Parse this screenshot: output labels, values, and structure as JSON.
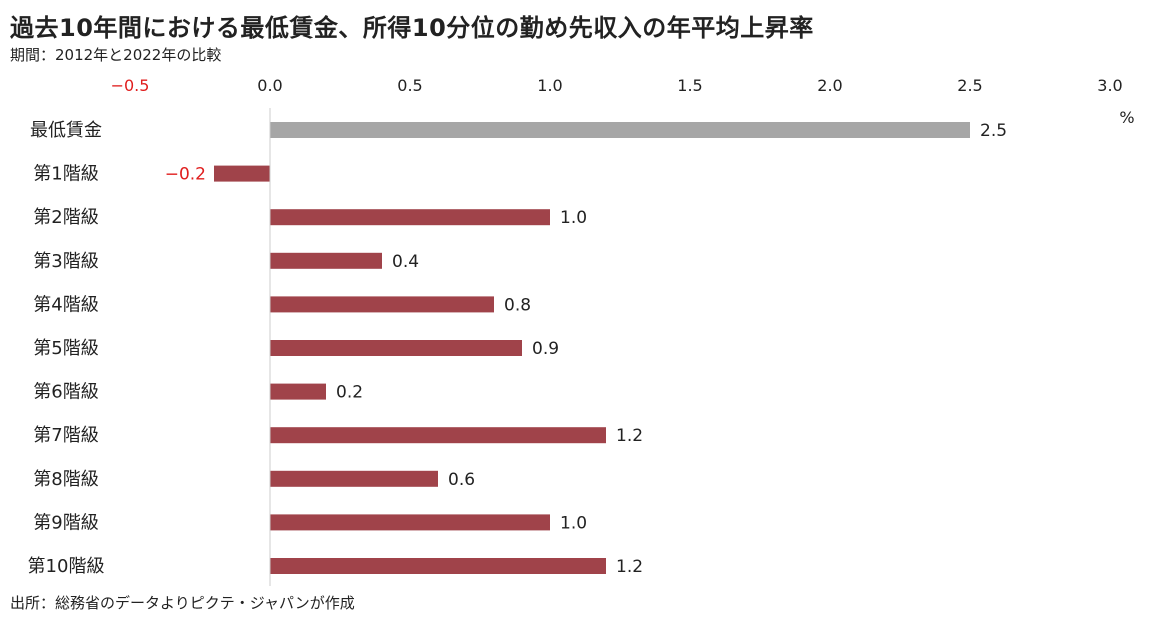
{
  "title": "過去10年間における最低賃金、所得10分位の勤め先収入の年平均上昇率",
  "subtitle": "期間：2012年と2022年の比較",
  "source": "出所：総務省のデータよりピクテ・ジャパンが作成",
  "chart_data": {
    "type": "bar",
    "orientation": "horizontal",
    "unit": "%",
    "categories": [
      "最低賃金",
      "第1階級",
      "第2階級",
      "第3階級",
      "第4階級",
      "第5階級",
      "第6階級",
      "第7階級",
      "第8階級",
      "第9階級",
      "第10階級"
    ],
    "values": [
      2.5,
      -0.2,
      1.0,
      0.4,
      0.8,
      0.9,
      0.2,
      1.2,
      0.6,
      1.0,
      1.2
    ],
    "value_labels": [
      "2.5",
      "−0.2",
      "1.0",
      "0.4",
      "0.8",
      "0.9",
      "0.2",
      "1.2",
      "0.6",
      "1.0",
      "1.2"
    ],
    "xlim": [
      -0.5,
      3.0
    ],
    "xticks": [
      -0.5,
      0.0,
      0.5,
      1.0,
      1.5,
      2.0,
      2.5,
      3.0
    ],
    "xtick_labels": [
      "−0.5",
      "0.0",
      "0.5",
      "1.0",
      "1.5",
      "2.0",
      "2.5",
      "3.0"
    ],
    "axis_position": "top",
    "grid": false,
    "colors": {
      "min_wage_bar": "#a6a6a6",
      "decile_bar": "#a0434a",
      "negative_text": "#e01e1e",
      "text": "#222222",
      "axis": "#cccccc"
    }
  }
}
